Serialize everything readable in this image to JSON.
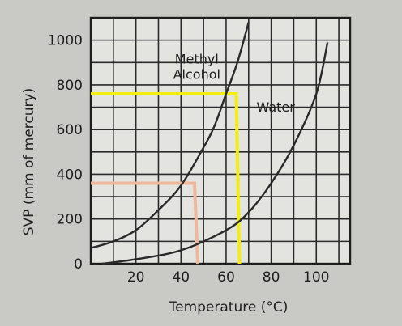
{
  "chart_data": {
    "type": "line",
    "title": "",
    "xlabel": "Temperature (°C)",
    "ylabel": "SVP (mm of mercury)",
    "xlim": [
      0,
      115
    ],
    "ylim": [
      0,
      1100
    ],
    "grid": true,
    "x_ticks": [
      20,
      40,
      60,
      80,
      100
    ],
    "x_tick_labels": [
      "20",
      "40",
      "60",
      "80",
      "100"
    ],
    "y_ticks": [
      0,
      200,
      400,
      600,
      800,
      1000
    ],
    "y_tick_labels": [
      "0",
      "200",
      "400",
      "600",
      "800",
      "1000"
    ],
    "series": [
      {
        "name": "Methyl Alcohol",
        "color": "#2a2a2a",
        "x": [
          0,
          10,
          20,
          30,
          40,
          50,
          55,
          60,
          65,
          70
        ],
        "y": [
          70,
          100,
          150,
          240,
          350,
          520,
          620,
          760,
          900,
          1080
        ]
      },
      {
        "name": "Water",
        "color": "#2a2a2a",
        "x": [
          5,
          20,
          40,
          60,
          70,
          80,
          90,
          100,
          105
        ],
        "y": [
          0,
          20,
          60,
          150,
          230,
          360,
          530,
          760,
          990
        ]
      }
    ],
    "annotations": {
      "series_labels": [
        {
          "series": "Methyl Alcohol",
          "lines": [
            "Methyl",
            "Alcohol"
          ],
          "x": 47,
          "y": 895
        },
        {
          "series": "Water",
          "lines": [
            "Water"
          ],
          "x": 82,
          "y": 680
        }
      ],
      "reference_lines": [
        {
          "color": "#f4ee10",
          "from_x": 0,
          "y": 760,
          "to_x": 64.5
        },
        {
          "color": "#f0b89a",
          "from_x": 0,
          "y": 360,
          "to_x": 46
        }
      ]
    }
  }
}
